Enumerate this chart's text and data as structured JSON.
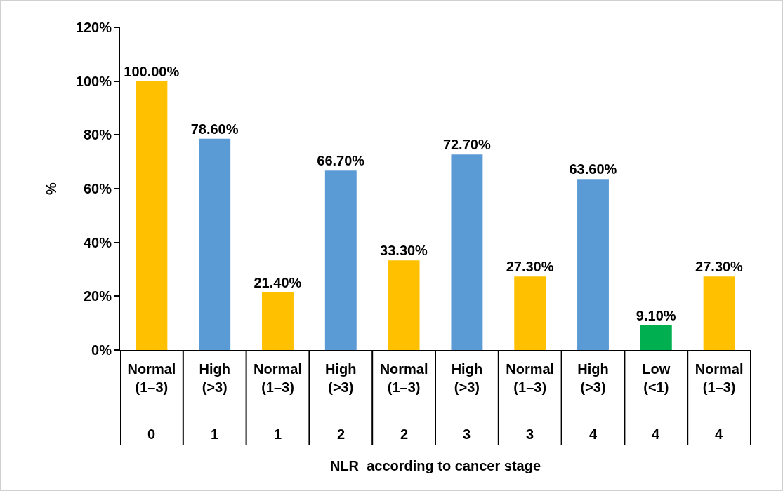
{
  "chart_data": {
    "type": "bar",
    "xlabel": "NLR  according to cancer stage",
    "ylabel": "%",
    "categories": [
      "Normal (1–3)",
      "High (>3)",
      "Normal (1–3)",
      "High (>3)",
      "Normal (1–3)",
      "High (>3)",
      "Normal (1–3)",
      "High (>3)",
      "Low (<1)",
      "Normal (1–3)"
    ],
    "values": [
      100,
      78.6,
      21.4,
      66.7,
      33.3,
      72.7,
      27.3,
      63.6,
      9.1,
      27.3
    ],
    "colors": [
      "#ffc000",
      "#5b9bd5",
      "#ffc000",
      "#5b9bd5",
      "#ffc000",
      "#5b9bd5",
      "#ffc000",
      "#5b9bd5",
      "#00b050",
      "#ffc000"
    ],
    "value_labels": [
      "100.00%",
      "78.60%",
      "21.40%",
      "66.70%",
      "33.30%",
      "72.70%",
      "27.30%",
      "63.60%",
      "9.10%",
      "27.30%"
    ],
    "annotations": [
      "0",
      "1",
      "1",
      "2",
      "2",
      "3",
      "3",
      "4",
      "4",
      "4"
    ],
    "ylim": [
      0,
      120
    ],
    "yticks": [
      {
        "value": 0,
        "label": "0%"
      },
      {
        "value": 20,
        "label": "20%"
      },
      {
        "value": 40,
        "label": "40%"
      },
      {
        "value": 60,
        "label": "60%"
      },
      {
        "value": 80,
        "label": "80%"
      },
      {
        "value": 100,
        "label": "100%"
      },
      {
        "value": 120,
        "label": "120%"
      }
    ],
    "grid": false
  }
}
